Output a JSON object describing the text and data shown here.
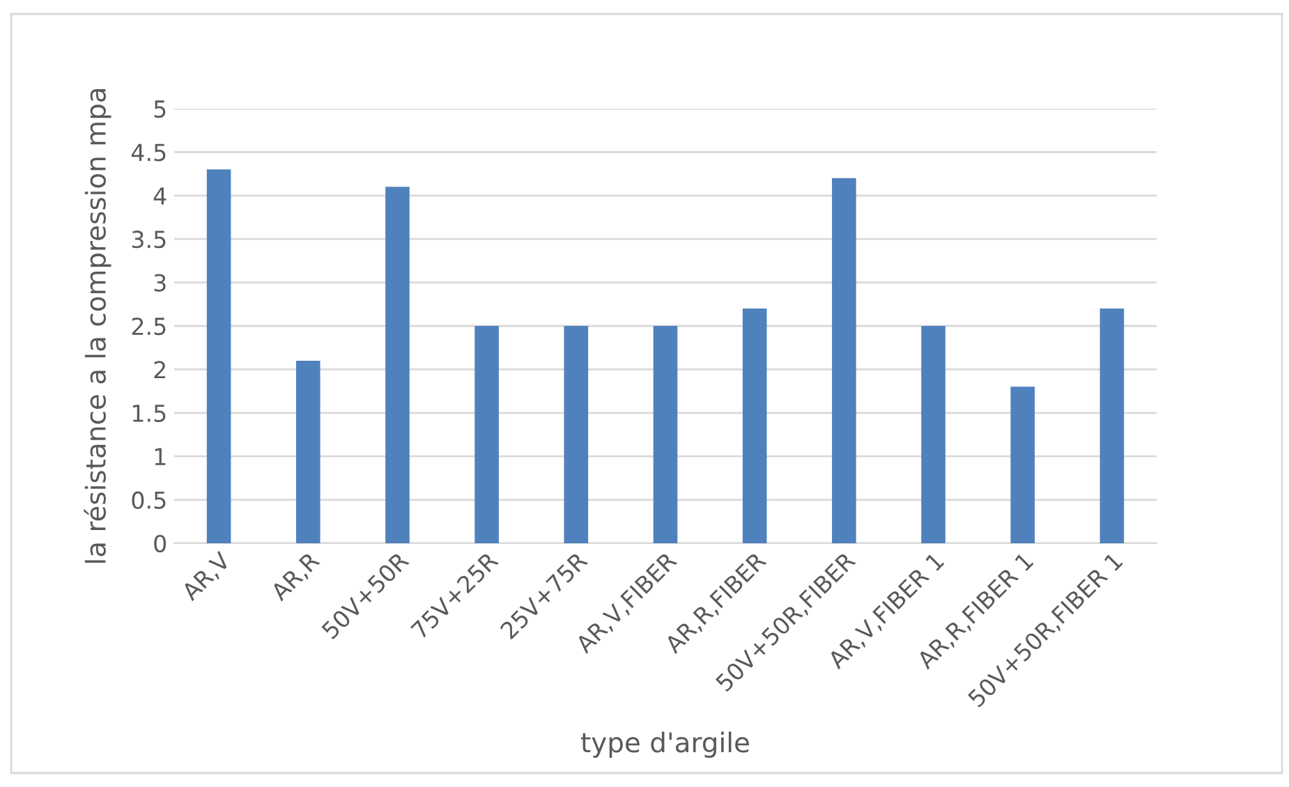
{
  "chart_data": {
    "type": "bar",
    "xlabel": "type d'argile",
    "ylabel": "la résistance a la compression mpa",
    "categories": [
      "AR,V",
      "AR,R",
      "50V+50R",
      "75V+25R",
      "25V+75R",
      "AR,V,FIBER",
      "AR,R,FIBER",
      "50V+50R,FIBER",
      "AR,V,FIBER 1",
      "AR,R,FIBER 1",
      "50V+50R,FIBER 1"
    ],
    "values": [
      4.3,
      2.1,
      4.1,
      2.5,
      2.5,
      2.5,
      2.7,
      4.2,
      2.5,
      1.8,
      2.7
    ],
    "color": "#4f81bd",
    "ylim": [
      0,
      5
    ],
    "yticks": [
      0,
      0.5,
      1,
      1.5,
      2,
      2.5,
      3,
      3.5,
      4,
      4.5,
      5
    ],
    "grid": "y",
    "legend": false
  }
}
